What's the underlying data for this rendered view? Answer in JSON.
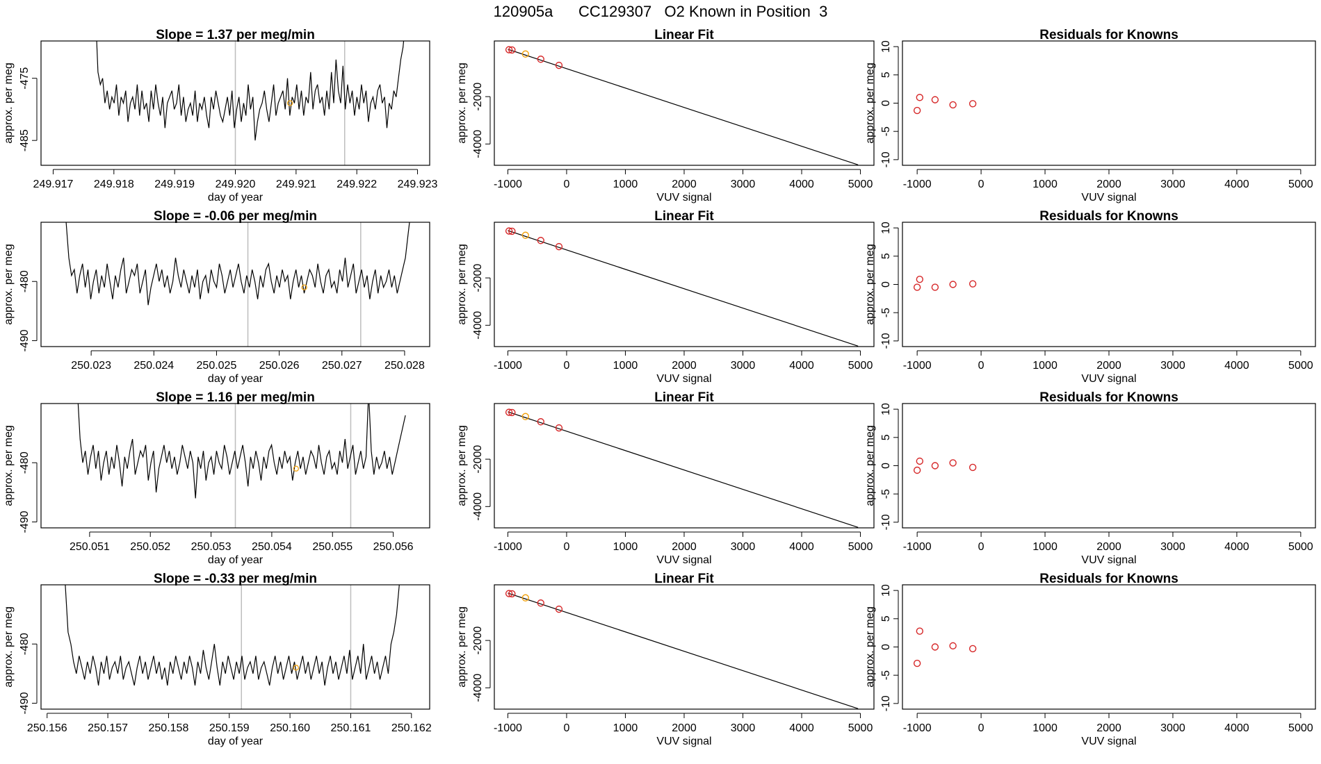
{
  "main_title": "120905a      CC129307   O2 Known in Position  3",
  "colors": {
    "series": "#000000",
    "known": "#d62728",
    "unknown": "#f2a10c",
    "marker_line": "#bdbdbd"
  },
  "chart_data": [
    {
      "type": "line",
      "row": 1,
      "title": "Slope =  1.37  per meg/min",
      "xlabel": "day of year",
      "ylabel": "approx. per meg",
      "xlim": [
        249.9168,
        249.9232
      ],
      "ylim": [
        -489,
        -469
      ],
      "xticks": [
        "249.917",
        "249.918",
        "249.919",
        "249.920",
        "249.921",
        "249.922",
        "249.923"
      ],
      "yticks": [
        -475,
        -485
      ],
      "x_start": 249.9177,
      "x_end": 249.9228,
      "y": [
        -465,
        -474,
        -476,
        -475,
        -479,
        -477,
        -480,
        -478,
        -479,
        -476,
        -481,
        -478,
        -479,
        -477,
        -482,
        -479,
        -478,
        -480,
        -476,
        -481,
        -477,
        -480,
        -479,
        -482,
        -477,
        -480,
        -476,
        -479,
        -481,
        -478,
        -483,
        -479,
        -478,
        -477,
        -480,
        -479,
        -476,
        -481,
        -478,
        -482,
        -480,
        -479,
        -481,
        -477,
        -482,
        -479,
        -480,
        -478,
        -481,
        -483,
        -478,
        -480,
        -477,
        -479,
        -481,
        -482,
        -480,
        -478,
        -481,
        -477,
        -483,
        -480,
        -478,
        -482,
        -479,
        -481,
        -476,
        -480,
        -478,
        -485,
        -482,
        -480,
        -479,
        -477,
        -480,
        -482,
        -479,
        -476,
        -481,
        -479,
        -478,
        -477,
        -480,
        -475,
        -481,
        -478,
        -479,
        -476,
        -480,
        -477,
        -481,
        -478,
        -479,
        -474,
        -480,
        -477,
        -476,
        -479,
        -478,
        -481,
        -477,
        -480,
        -474,
        -479,
        -472,
        -477,
        -479,
        -473,
        -480,
        -476,
        -479,
        -477,
        -481,
        -478,
        -480,
        -476,
        -479,
        -477,
        -482,
        -479,
        -478,
        -480,
        -477,
        -476,
        -479,
        -478,
        -483,
        -479,
        -480,
        -477,
        -478,
        -475,
        -472,
        -470,
        -466
      ],
      "vlines": [
        249.92,
        249.9218
      ],
      "unknown_point": {
        "x": 249.9209,
        "y": -479
      }
    },
    {
      "type": "line",
      "row": 2,
      "title": "Slope =  -0.06  per meg/min",
      "xlabel": "day of year",
      "ylabel": "approx. per meg",
      "xlim": [
        250.0222,
        250.0284
      ],
      "ylim": [
        -491,
        -470
      ],
      "xticks": [
        "250.023",
        "250.024",
        "250.025",
        "250.026",
        "250.027",
        "250.028"
      ],
      "yticks": [
        -480,
        -490
      ],
      "x_start": 250.0226,
      "x_end": 250.0281,
      "y": [
        -470,
        -476,
        -479,
        -478,
        -482,
        -479,
        -477,
        -481,
        -478,
        -483,
        -480,
        -478,
        -482,
        -479,
        -481,
        -477,
        -480,
        -483,
        -479,
        -481,
        -478,
        -476,
        -482,
        -480,
        -478,
        -479,
        -477,
        -482,
        -480,
        -478,
        -484,
        -481,
        -479,
        -477,
        -480,
        -478,
        -481,
        -479,
        -482,
        -480,
        -476,
        -479,
        -481,
        -478,
        -480,
        -482,
        -479,
        -481,
        -478,
        -483,
        -480,
        -479,
        -482,
        -478,
        -480,
        -481,
        -477,
        -479,
        -482,
        -480,
        -478,
        -481,
        -479,
        -477,
        -480,
        -482,
        -479,
        -481,
        -478,
        -480,
        -483,
        -479,
        -481,
        -478,
        -477,
        -480,
        -482,
        -479,
        -481,
        -478,
        -480,
        -479,
        -483,
        -480,
        -478,
        -481,
        -479,
        -482,
        -480,
        -478,
        -479,
        -481,
        -477,
        -480,
        -482,
        -479,
        -478,
        -481,
        -480,
        -482,
        -478,
        -480,
        -476,
        -481,
        -479,
        -477,
        -482,
        -480,
        -478,
        -481,
        -479,
        -483,
        -480,
        -478,
        -482,
        -479,
        -481,
        -480,
        -478,
        -481,
        -479,
        -482,
        -480,
        -478,
        -476,
        -472,
        -468
      ],
      "vlines": [
        250.0255,
        250.0273
      ],
      "unknown_point": {
        "x": 250.0264,
        "y": -481
      }
    },
    {
      "type": "line",
      "row": 3,
      "title": "Slope =  1.16  per meg/min",
      "xlabel": "day of year",
      "ylabel": "approx. per meg",
      "xlim": [
        250.0502,
        250.0566
      ],
      "ylim": [
        -491,
        -470
      ],
      "xticks": [
        "250.051",
        "250.052",
        "250.053",
        "250.054",
        "250.055",
        "250.056"
      ],
      "yticks": [
        -480,
        -490
      ],
      "x_start": 250.0508,
      "x_end": 250.0562,
      "y": [
        -468,
        -476,
        -480,
        -478,
        -482,
        -479,
        -477,
        -481,
        -478,
        -483,
        -480,
        -478,
        -482,
        -479,
        -481,
        -477,
        -480,
        -484,
        -479,
        -481,
        -478,
        -476,
        -482,
        -480,
        -478,
        -479,
        -477,
        -483,
        -480,
        -478,
        -485,
        -481,
        -479,
        -477,
        -480,
        -478,
        -481,
        -479,
        -482,
        -480,
        -477,
        -479,
        -481,
        -478,
        -480,
        -486,
        -479,
        -481,
        -478,
        -483,
        -480,
        -479,
        -482,
        -478,
        -480,
        -481,
        -477,
        -479,
        -482,
        -480,
        -478,
        -481,
        -479,
        -477,
        -480,
        -484,
        -479,
        -481,
        -478,
        -480,
        -483,
        -479,
        -481,
        -478,
        -477,
        -480,
        -482,
        -479,
        -481,
        -478,
        -480,
        -479,
        -483,
        -480,
        -478,
        -481,
        -479,
        -482,
        -480,
        -478,
        -479,
        -481,
        -477,
        -480,
        -482,
        -479,
        -478,
        -481,
        -480,
        -482,
        -478,
        -480,
        -476,
        -481,
        -479,
        -477,
        -482,
        -480,
        -478,
        -481,
        -479,
        -468,
        -478,
        -482,
        -479,
        -481,
        -480,
        -478,
        -481,
        -479,
        -482,
        -480,
        -478,
        -476,
        -474,
        -472
      ],
      "vlines": [
        250.0534,
        250.0553
      ],
      "unknown_point": {
        "x": 250.0544,
        "y": -481
      }
    },
    {
      "type": "line",
      "row": 4,
      "title": "Slope =  -0.33  per meg/min",
      "xlabel": "day of year",
      "ylabel": "approx. per meg",
      "xlim": [
        250.1559,
        250.1623
      ],
      "ylim": [
        -491,
        -470
      ],
      "xticks": [
        "250.156",
        "250.157",
        "250.158",
        "250.159",
        "250.160",
        "250.161",
        "250.162"
      ],
      "yticks": [
        -480,
        -490
      ],
      "x_start": 250.1563,
      "x_end": 250.1618,
      "y": [
        -470,
        -478,
        -480,
        -483,
        -485,
        -482,
        -484,
        -486,
        -483,
        -485,
        -482,
        -484,
        -487,
        -483,
        -485,
        -482,
        -486,
        -484,
        -483,
        -485,
        -482,
        -486,
        -484,
        -483,
        -485,
        -487,
        -484,
        -482,
        -485,
        -483,
        -486,
        -484,
        -482,
        -485,
        -483,
        -486,
        -484,
        -487,
        -483,
        -485,
        -482,
        -484,
        -486,
        -483,
        -485,
        -482,
        -484,
        -487,
        -483,
        -485,
        -481,
        -484,
        -486,
        -483,
        -480,
        -484,
        -487,
        -483,
        -485,
        -482,
        -484,
        -486,
        -483,
        -485,
        -482,
        -486,
        -484,
        -483,
        -485,
        -482,
        -486,
        -484,
        -483,
        -485,
        -487,
        -484,
        -482,
        -485,
        -483,
        -486,
        -484,
        -482,
        -485,
        -483,
        -486,
        -484,
        -482,
        -485,
        -483,
        -486,
        -484,
        -482,
        -485,
        -483,
        -487,
        -484,
        -482,
        -485,
        -483,
        -486,
        -484,
        -482,
        -485,
        -481,
        -486,
        -484,
        -482,
        -485,
        -480,
        -486,
        -484,
        -482,
        -485,
        -483,
        -486,
        -484,
        -482,
        -485,
        -480,
        -478,
        -475,
        -470
      ],
      "vlines": [
        250.1592,
        250.161
      ],
      "unknown_point": {
        "x": 250.1601,
        "y": -484
      }
    },
    {
      "type": "scatter",
      "row": 1,
      "title": "Linear Fit",
      "xlabel": "VUV signal",
      "ylabel": "approx. per meg",
      "xlim": [
        -1230,
        5230
      ],
      "ylim": [
        -4900,
        350
      ],
      "xticks": [
        -1000,
        0,
        1000,
        2000,
        3000,
        4000,
        5000
      ],
      "yticks": [
        -2000,
        -4000
      ],
      "line": [
        [
          -1000,
          0
        ],
        [
          4960,
          -4880
        ]
      ],
      "knowns": [
        [
          -980,
          -20
        ],
        [
          -930,
          -30
        ],
        [
          -440,
          -420
        ],
        [
          -130,
          -680
        ]
      ],
      "unknown": [
        [
          -700,
          -200
        ]
      ]
    },
    {
      "type": "scatter",
      "row": 2,
      "title": "Linear Fit",
      "xlabel": "VUV signal",
      "ylabel": "approx. per meg",
      "xlim": [
        -1230,
        5230
      ],
      "ylim": [
        -4900,
        350
      ],
      "xticks": [
        -1000,
        0,
        1000,
        2000,
        3000,
        4000,
        5000
      ],
      "yticks": [
        -2000,
        -4000
      ],
      "line": [
        [
          -1000,
          0
        ],
        [
          4960,
          -4880
        ]
      ],
      "knowns": [
        [
          -980,
          -20
        ],
        [
          -930,
          -30
        ],
        [
          -440,
          -420
        ],
        [
          -130,
          -680
        ]
      ],
      "unknown": [
        [
          -700,
          -200
        ]
      ]
    },
    {
      "type": "scatter",
      "row": 3,
      "title": "Linear Fit",
      "xlabel": "VUV signal",
      "ylabel": "approx. per meg",
      "xlim": [
        -1230,
        5230
      ],
      "ylim": [
        -4900,
        350
      ],
      "xticks": [
        -1000,
        0,
        1000,
        2000,
        3000,
        4000,
        5000
      ],
      "yticks": [
        -2000,
        -4000
      ],
      "line": [
        [
          -1000,
          0
        ],
        [
          4960,
          -4880
        ]
      ],
      "knowns": [
        [
          -980,
          -20
        ],
        [
          -930,
          -30
        ],
        [
          -440,
          -420
        ],
        [
          -130,
          -680
        ]
      ],
      "unknown": [
        [
          -700,
          -200
        ]
      ]
    },
    {
      "type": "scatter",
      "row": 4,
      "title": "Linear Fit",
      "xlabel": "VUV signal",
      "ylabel": "approx. per meg",
      "xlim": [
        -1230,
        5230
      ],
      "ylim": [
        -4900,
        350
      ],
      "xticks": [
        -1000,
        0,
        1000,
        2000,
        3000,
        4000,
        5000
      ],
      "yticks": [
        -2000,
        -4000
      ],
      "line": [
        [
          -1000,
          0
        ],
        [
          4960,
          -4880
        ]
      ],
      "knowns": [
        [
          -980,
          -20
        ],
        [
          -930,
          -30
        ],
        [
          -440,
          -420
        ],
        [
          -130,
          -680
        ]
      ],
      "unknown": [
        [
          -700,
          -200
        ]
      ]
    },
    {
      "type": "scatter",
      "row": 1,
      "title": "Residuals for Knowns",
      "xlabel": "VUV signal",
      "ylabel": "approx. per meg",
      "xlim": [
        -1230,
        5230
      ],
      "ylim": [
        -11,
        11
      ],
      "xticks": [
        -1000,
        0,
        1000,
        2000,
        3000,
        4000,
        5000
      ],
      "yticks": [
        10,
        5,
        0,
        -5,
        -10
      ],
      "knowns": [
        [
          -1000,
          -1.3
        ],
        [
          -960,
          1.0
        ],
        [
          -720,
          0.6
        ],
        [
          -440,
          -0.3
        ],
        [
          -130,
          -0.1
        ]
      ]
    },
    {
      "type": "scatter",
      "row": 2,
      "title": "Residuals for Knowns",
      "xlabel": "VUV signal",
      "ylabel": "approx. per meg",
      "xlim": [
        -1230,
        5230
      ],
      "ylim": [
        -11,
        11
      ],
      "xticks": [
        -1000,
        0,
        1000,
        2000,
        3000,
        4000,
        5000
      ],
      "yticks": [
        10,
        5,
        0,
        -5,
        -10
      ],
      "knowns": [
        [
          -1000,
          -0.5
        ],
        [
          -960,
          0.9
        ],
        [
          -720,
          -0.5
        ],
        [
          -440,
          0.0
        ],
        [
          -130,
          0.1
        ]
      ]
    },
    {
      "type": "scatter",
      "row": 3,
      "title": "Residuals for Knowns",
      "xlabel": "VUV signal",
      "ylabel": "approx. per meg",
      "xlim": [
        -1230,
        5230
      ],
      "ylim": [
        -11,
        11
      ],
      "xticks": [
        -1000,
        0,
        1000,
        2000,
        3000,
        4000,
        5000
      ],
      "yticks": [
        10,
        5,
        0,
        -5,
        -10
      ],
      "knowns": [
        [
          -1000,
          -0.8
        ],
        [
          -960,
          0.8
        ],
        [
          -720,
          0.0
        ],
        [
          -440,
          0.5
        ],
        [
          -130,
          -0.3
        ]
      ]
    },
    {
      "type": "scatter",
      "row": 4,
      "title": "Residuals for Knowns",
      "xlabel": "VUV signal",
      "ylabel": "approx. per meg",
      "xlim": [
        -1230,
        5230
      ],
      "ylim": [
        -11,
        11
      ],
      "xticks": [
        -1000,
        0,
        1000,
        2000,
        3000,
        4000,
        5000
      ],
      "yticks": [
        10,
        5,
        0,
        -5,
        -10
      ],
      "knowns": [
        [
          -1000,
          -2.9
        ],
        [
          -960,
          2.8
        ],
        [
          -720,
          0.0
        ],
        [
          -440,
          0.2
        ],
        [
          -130,
          -0.3
        ]
      ]
    }
  ]
}
